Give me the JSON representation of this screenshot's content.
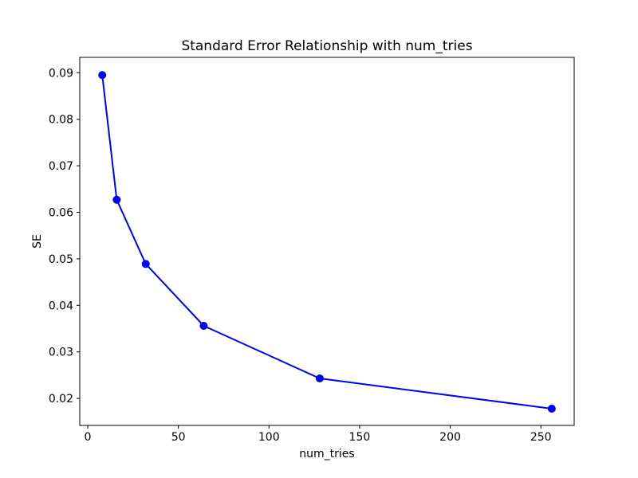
{
  "figure": {
    "background": "#ffffff",
    "text_color": "#000000",
    "spine_color": "#000000"
  },
  "chart_data": {
    "type": "line",
    "title": "Standard Error Relationship with num_tries",
    "xlabel": "num_tries",
    "ylabel": "SE",
    "x": [
      8,
      16,
      32,
      64,
      128,
      256
    ],
    "y": [
      0.0895,
      0.0627,
      0.0489,
      0.0356,
      0.0243,
      0.0178
    ],
    "line_color": "#0000ff",
    "marker": "circle",
    "marker_color": "#0000ff",
    "xlim": [
      -4.4,
      268.4
    ],
    "ylim": [
      0.0142,
      0.0933
    ],
    "xticks": [
      0,
      50,
      100,
      150,
      200,
      250
    ],
    "xtick_labels": [
      "0",
      "50",
      "100",
      "150",
      "200",
      "250"
    ],
    "yticks": [
      0.02,
      0.03,
      0.04,
      0.05,
      0.06,
      0.07,
      0.08,
      0.09
    ],
    "ytick_labels": [
      "0.02",
      "0.03",
      "0.04",
      "0.05",
      "0.06",
      "0.07",
      "0.08",
      "0.09"
    ],
    "grid": false,
    "legend": "none"
  }
}
